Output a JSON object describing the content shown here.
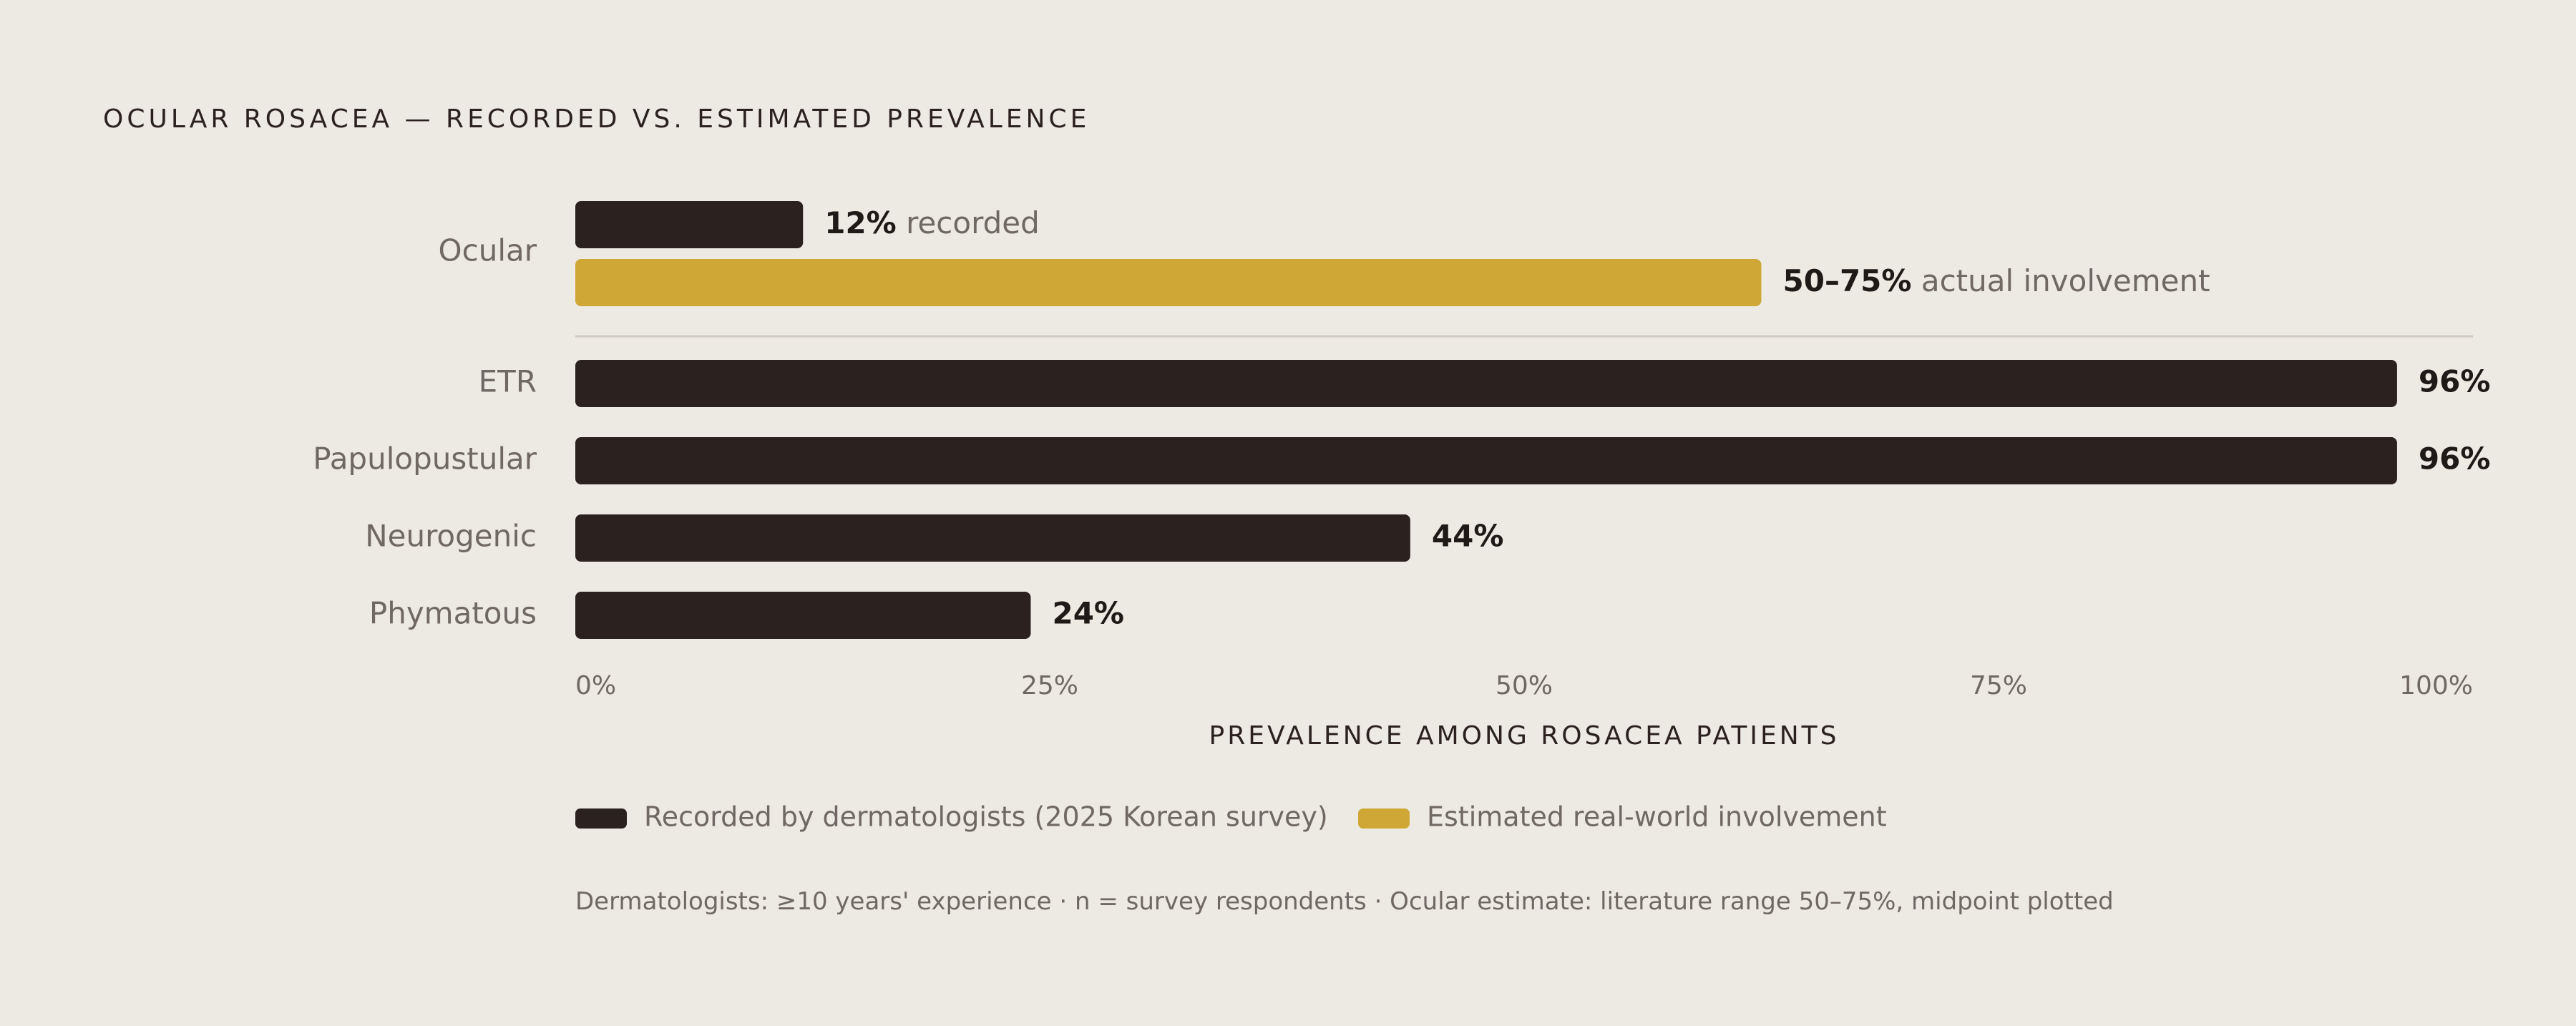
{
  "chart_data": {
    "type": "bar",
    "orientation": "horizontal",
    "title": "OCULAR ROSACEA — RECORDED VS. ESTIMATED PREVALENCE",
    "xlabel": "PREVALENCE AMONG ROSACEA PATIENTS",
    "xlim": [
      0,
      100
    ],
    "x_ticks": [
      "0%",
      "25%",
      "50%",
      "75%",
      "100%"
    ],
    "ocular": {
      "category": "Ocular",
      "recorded": {
        "value": 12,
        "label_bold": "12%",
        "label_rest": "recorded"
      },
      "estimated": {
        "value": 62.5,
        "range": [
          50,
          75
        ],
        "label_bold": "50–75%",
        "label_rest": "actual involvement"
      }
    },
    "categories": [
      "ETR",
      "Papulopustular",
      "Neurogenic",
      "Phymatous"
    ],
    "values": [
      96,
      96,
      44,
      24
    ],
    "value_labels": [
      "96%",
      "96%",
      "44%",
      "24%"
    ],
    "legend": [
      {
        "label": "Recorded by dermatologists (2025 Korean survey)",
        "color": "#2B2220"
      },
      {
        "label": "Estimated real-world involvement",
        "color": "#CFA737"
      }
    ],
    "footnote": "Dermatologists: ≥10 years' experience · n = survey respondents · Ocular estimate: literature range 50–75%, midpoint plotted",
    "colors": {
      "recorded": "#2B2220",
      "estimated": "#CFA737",
      "background": "#EDEAE3"
    },
    "grid": false
  }
}
